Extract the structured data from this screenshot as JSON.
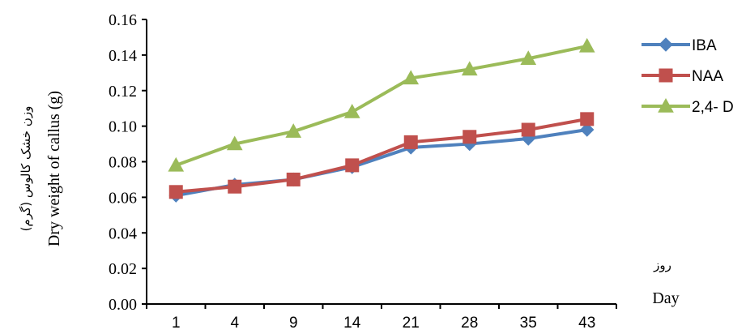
{
  "chart_data": {
    "type": "line",
    "categories": [
      "1",
      "4",
      "9",
      "14",
      "21",
      "28",
      "35",
      "43"
    ],
    "series": [
      {
        "name": "IBA",
        "color": "#4F81BD",
        "marker": "diamond",
        "values": [
          0.061,
          0.067,
          0.07,
          0.077,
          0.088,
          0.09,
          0.093,
          0.098
        ]
      },
      {
        "name": "NAA",
        "color": "#C0504D",
        "marker": "square",
        "values": [
          0.063,
          0.066,
          0.07,
          0.078,
          0.091,
          0.094,
          0.098,
          0.104
        ]
      },
      {
        "name": "2,4- D",
        "color": "#9BBB59",
        "marker": "triangle",
        "values": [
          0.078,
          0.09,
          0.097,
          0.108,
          0.127,
          0.132,
          0.138,
          0.145
        ]
      }
    ],
    "ylim": [
      0,
      0.16
    ],
    "yticks": [
      "0.00",
      "0.02",
      "0.04",
      "0.06",
      "0.08",
      "0.10",
      "0.12",
      "0.14",
      "0.16"
    ],
    "ylabel": "Dry weight of callus (g)",
    "ylabel_fa": "وزن خشک کالوس (گرم)",
    "xlabel": "Day",
    "xlabel_fa": "روز",
    "grid": false,
    "legend_position": "right"
  }
}
